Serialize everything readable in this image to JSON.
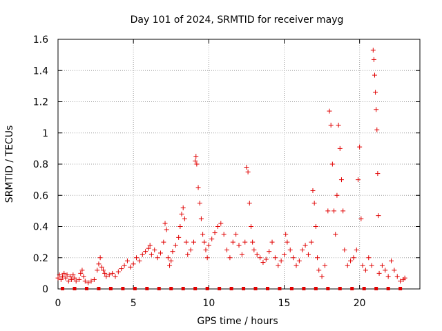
{
  "chart_data": {
    "type": "scatter",
    "title": "Day 101 of 2024, SRMTID for receiver mayg",
    "xlabel": "GPS time / hours",
    "ylabel": "SRMTID / TECUs",
    "xlim": [
      0,
      24
    ],
    "ylim": [
      0,
      1.6
    ],
    "xticks": [
      0,
      5,
      10,
      15,
      20
    ],
    "xtick_labels": [
      "0",
      "5",
      "10",
      "15",
      "20"
    ],
    "yticks": [
      0,
      0.2,
      0.4,
      0.6,
      0.8,
      1.0,
      1.2,
      1.4,
      1.6
    ],
    "ytick_labels": [
      "0",
      "0.2",
      "0.4",
      "0.6",
      "0.8",
      "1",
      "1.2",
      "1.4",
      "1.6"
    ],
    "grid": true,
    "marker": "+",
    "color": "#e00000",
    "series": [
      {
        "name": "SRMTID",
        "points": [
          [
            0.0,
            0.07
          ],
          [
            0.1,
            0.09
          ],
          [
            0.2,
            0.06
          ],
          [
            0.3,
            0.08
          ],
          [
            0.4,
            0.1
          ],
          [
            0.5,
            0.07
          ],
          [
            0.6,
            0.09
          ],
          [
            0.7,
            0.05
          ],
          [
            0.8,
            0.08
          ],
          [
            0.9,
            0.06
          ],
          [
            1.0,
            0.09
          ],
          [
            1.1,
            0.07
          ],
          [
            1.2,
            0.05
          ],
          [
            1.4,
            0.06
          ],
          [
            1.5,
            0.1
          ],
          [
            1.6,
            0.12
          ],
          [
            1.7,
            0.08
          ],
          [
            1.8,
            0.05
          ],
          [
            2.0,
            0.04
          ],
          [
            2.2,
            0.05
          ],
          [
            2.4,
            0.06
          ],
          [
            2.6,
            0.12
          ],
          [
            2.7,
            0.16
          ],
          [
            2.8,
            0.2
          ],
          [
            2.9,
            0.14
          ],
          [
            3.0,
            0.12
          ],
          [
            3.1,
            0.1
          ],
          [
            3.2,
            0.08
          ],
          [
            3.4,
            0.09
          ],
          [
            3.6,
            0.1
          ],
          [
            3.8,
            0.08
          ],
          [
            4.0,
            0.11
          ],
          [
            4.2,
            0.13
          ],
          [
            4.4,
            0.15
          ],
          [
            4.6,
            0.18
          ],
          [
            4.8,
            0.14
          ],
          [
            5.0,
            0.16
          ],
          [
            5.2,
            0.2
          ],
          [
            5.4,
            0.18
          ],
          [
            5.6,
            0.22
          ],
          [
            5.8,
            0.24
          ],
          [
            6.0,
            0.26
          ],
          [
            6.1,
            0.28
          ],
          [
            6.2,
            0.22
          ],
          [
            6.4,
            0.25
          ],
          [
            6.6,
            0.2
          ],
          [
            6.8,
            0.23
          ],
          [
            7.0,
            0.3
          ],
          [
            7.1,
            0.42
          ],
          [
            7.2,
            0.38
          ],
          [
            7.3,
            0.2
          ],
          [
            7.4,
            0.15
          ],
          [
            7.5,
            0.18
          ],
          [
            7.6,
            0.24
          ],
          [
            7.8,
            0.28
          ],
          [
            8.0,
            0.33
          ],
          [
            8.1,
            0.4
          ],
          [
            8.2,
            0.48
          ],
          [
            8.3,
            0.52
          ],
          [
            8.4,
            0.45
          ],
          [
            8.5,
            0.3
          ],
          [
            8.6,
            0.22
          ],
          [
            8.8,
            0.25
          ],
          [
            9.0,
            0.3
          ],
          [
            9.1,
            0.82
          ],
          [
            9.15,
            0.85
          ],
          [
            9.2,
            0.8
          ],
          [
            9.3,
            0.65
          ],
          [
            9.4,
            0.55
          ],
          [
            9.5,
            0.45
          ],
          [
            9.6,
            0.35
          ],
          [
            9.7,
            0.3
          ],
          [
            9.8,
            0.25
          ],
          [
            9.9,
            0.2
          ],
          [
            10.0,
            0.28
          ],
          [
            10.2,
            0.32
          ],
          [
            10.4,
            0.36
          ],
          [
            10.6,
            0.4
          ],
          [
            10.8,
            0.42
          ],
          [
            11.0,
            0.35
          ],
          [
            11.2,
            0.25
          ],
          [
            11.4,
            0.2
          ],
          [
            11.6,
            0.3
          ],
          [
            11.8,
            0.35
          ],
          [
            12.0,
            0.28
          ],
          [
            12.2,
            0.22
          ],
          [
            12.4,
            0.3
          ],
          [
            12.5,
            0.78
          ],
          [
            12.6,
            0.75
          ],
          [
            12.7,
            0.55
          ],
          [
            12.8,
            0.4
          ],
          [
            12.9,
            0.3
          ],
          [
            13.0,
            0.25
          ],
          [
            13.2,
            0.22
          ],
          [
            13.4,
            0.2
          ],
          [
            13.6,
            0.17
          ],
          [
            13.8,
            0.19
          ],
          [
            14.0,
            0.24
          ],
          [
            14.2,
            0.3
          ],
          [
            14.4,
            0.2
          ],
          [
            14.6,
            0.15
          ],
          [
            14.8,
            0.18
          ],
          [
            15.0,
            0.22
          ],
          [
            15.1,
            0.35
          ],
          [
            15.2,
            0.3
          ],
          [
            15.4,
            0.25
          ],
          [
            15.6,
            0.2
          ],
          [
            15.8,
            0.15
          ],
          [
            16.0,
            0.18
          ],
          [
            16.2,
            0.25
          ],
          [
            16.4,
            0.28
          ],
          [
            16.6,
            0.22
          ],
          [
            16.8,
            0.3
          ],
          [
            16.9,
            0.63
          ],
          [
            17.0,
            0.55
          ],
          [
            17.1,
            0.4
          ],
          [
            17.2,
            0.2
          ],
          [
            17.3,
            0.12
          ],
          [
            17.5,
            0.08
          ],
          [
            17.7,
            0.15
          ],
          [
            17.9,
            0.5
          ],
          [
            18.0,
            1.14
          ],
          [
            18.1,
            1.05
          ],
          [
            18.2,
            0.8
          ],
          [
            18.3,
            0.5
          ],
          [
            18.4,
            0.35
          ],
          [
            18.5,
            0.6
          ],
          [
            18.6,
            1.05
          ],
          [
            18.7,
            0.9
          ],
          [
            18.8,
            0.7
          ],
          [
            18.9,
            0.5
          ],
          [
            19.0,
            0.25
          ],
          [
            19.2,
            0.15
          ],
          [
            19.4,
            0.18
          ],
          [
            19.6,
            0.2
          ],
          [
            19.8,
            0.25
          ],
          [
            19.9,
            0.7
          ],
          [
            20.0,
            0.91
          ],
          [
            20.1,
            0.45
          ],
          [
            20.2,
            0.15
          ],
          [
            20.4,
            0.12
          ],
          [
            20.6,
            0.2
          ],
          [
            20.8,
            0.15
          ],
          [
            20.9,
            1.53
          ],
          [
            20.95,
            1.47
          ],
          [
            21.0,
            1.37
          ],
          [
            21.05,
            1.26
          ],
          [
            21.1,
            1.15
          ],
          [
            21.15,
            1.02
          ],
          [
            21.2,
            0.74
          ],
          [
            21.25,
            0.47
          ],
          [
            21.3,
            0.1
          ],
          [
            21.5,
            0.15
          ],
          [
            21.7,
            0.12
          ],
          [
            21.9,
            0.08
          ],
          [
            22.1,
            0.18
          ],
          [
            22.3,
            0.12
          ],
          [
            22.5,
            0.08
          ],
          [
            22.7,
            0.05
          ],
          [
            22.9,
            0.06
          ],
          [
            23.0,
            0.07
          ]
        ]
      },
      {
        "name": "baseline",
        "points": [
          [
            0.3,
            0
          ],
          [
            1.1,
            0
          ],
          [
            1.9,
            0
          ],
          [
            2.7,
            0
          ],
          [
            3.5,
            0
          ],
          [
            4.3,
            0
          ],
          [
            5.1,
            0
          ],
          [
            5.9,
            0
          ],
          [
            6.7,
            0
          ],
          [
            7.5,
            0
          ],
          [
            8.3,
            0
          ],
          [
            9.1,
            0
          ],
          [
            9.9,
            0
          ],
          [
            10.7,
            0
          ],
          [
            11.5,
            0
          ],
          [
            12.3,
            0
          ],
          [
            13.1,
            0
          ],
          [
            13.9,
            0
          ],
          [
            14.7,
            0
          ],
          [
            15.5,
            0
          ],
          [
            16.3,
            0
          ],
          [
            17.1,
            0
          ],
          [
            17.9,
            0
          ],
          [
            18.7,
            0
          ],
          [
            19.5,
            0
          ],
          [
            20.3,
            0
          ],
          [
            21.1,
            0
          ],
          [
            21.9,
            0
          ],
          [
            22.7,
            0
          ]
        ]
      }
    ]
  }
}
